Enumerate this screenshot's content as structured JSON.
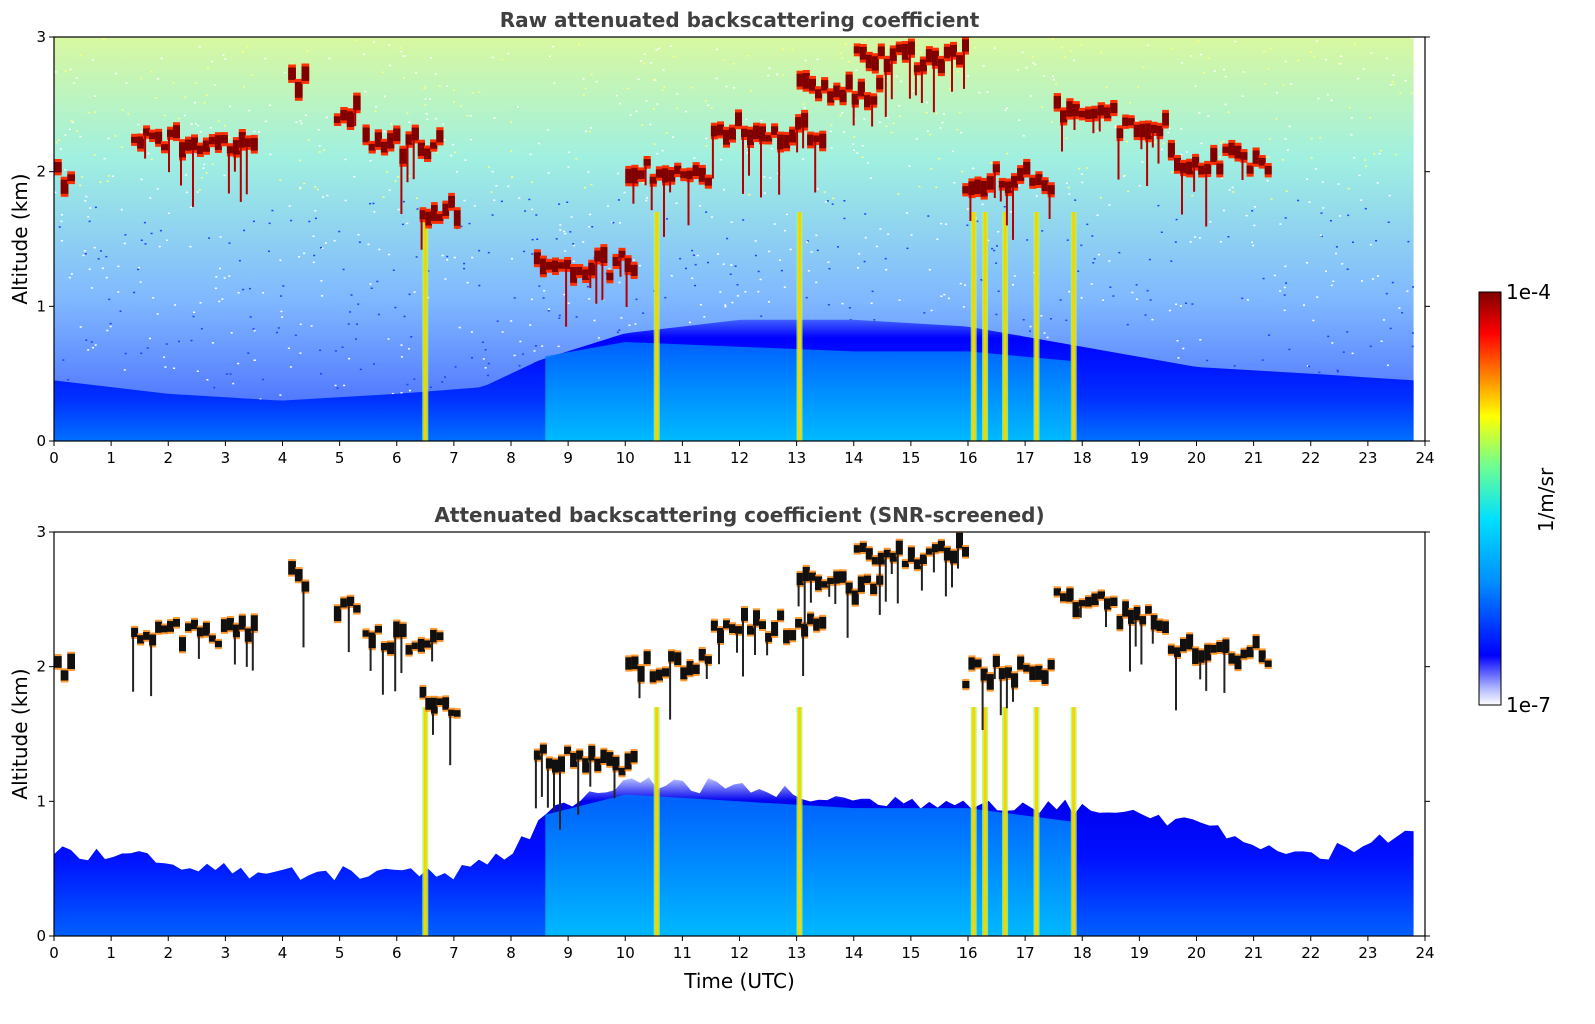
{
  "colors": {
    "colormap": [
      "#ffffff",
      "#b0b8ff",
      "#0000ff",
      "#0090ff",
      "#00e0ff",
      "#70ff90",
      "#ffff00",
      "#ff8000",
      "#ff0000",
      "#800000"
    ],
    "cloud_dark": "#101010",
    "axis": "#000000",
    "title_text": "#404040"
  },
  "chart_data": [
    {
      "type": "heatmap",
      "title": "Raw attenuated backscattering coefficient",
      "xlabel": "",
      "ylabel": "Altitude (km)",
      "xlim": [
        0,
        24
      ],
      "ylim": [
        0,
        3
      ],
      "x_ticks": [
        0,
        1,
        2,
        3,
        4,
        5,
        6,
        7,
        8,
        9,
        10,
        11,
        12,
        13,
        14,
        15,
        16,
        17,
        18,
        19,
        20,
        21,
        22,
        23,
        24
      ],
      "y_ticks": [
        0,
        1,
        2,
        3
      ],
      "data_end_time": 23.8,
      "boundary_layer_top_km": [
        [
          0,
          0.45
        ],
        [
          2,
          0.35
        ],
        [
          4,
          0.3
        ],
        [
          6,
          0.35
        ],
        [
          7.5,
          0.4
        ],
        [
          8.5,
          0.6
        ],
        [
          10,
          0.8
        ],
        [
          12,
          0.9
        ],
        [
          14,
          0.9
        ],
        [
          16,
          0.85
        ],
        [
          18,
          0.7
        ],
        [
          20,
          0.55
        ],
        [
          22,
          0.5
        ],
        [
          23.8,
          0.45
        ]
      ],
      "cloud_layers": [
        {
          "start": 0.0,
          "end": 0.35,
          "altitude_km": 1.95
        },
        {
          "start": 1.35,
          "end": 3.55,
          "altitude_km": 2.25
        },
        {
          "start": 4.1,
          "end": 4.45,
          "altitude_km": 2.65
        },
        {
          "start": 4.9,
          "end": 5.35,
          "altitude_km": 2.45
        },
        {
          "start": 5.4,
          "end": 6.8,
          "altitude_km": 2.2
        },
        {
          "start": 6.4,
          "end": 7.1,
          "altitude_km": 1.72
        },
        {
          "start": 8.4,
          "end": 10.2,
          "altitude_km": 1.3
        },
        {
          "start": 10.0,
          "end": 11.5,
          "altitude_km": 2.0
        },
        {
          "start": 11.5,
          "end": 13.5,
          "altitude_km": 2.3
        },
        {
          "start": 13.0,
          "end": 14.5,
          "altitude_km": 2.6
        },
        {
          "start": 14.0,
          "end": 16.0,
          "altitude_km": 2.85
        },
        {
          "start": 15.9,
          "end": 17.5,
          "altitude_km": 1.95
        },
        {
          "start": 17.5,
          "end": 18.6,
          "altitude_km": 2.5
        },
        {
          "start": 18.6,
          "end": 19.5,
          "altitude_km": 2.35
        },
        {
          "start": 19.5,
          "end": 21.3,
          "altitude_km": 2.1
        }
      ],
      "precipitation_streaks_utc": [
        6.5,
        10.55,
        13.05,
        16.1,
        16.3,
        16.65,
        17.2,
        17.85
      ]
    },
    {
      "type": "heatmap",
      "title": "Attenuated backscattering coefficient (SNR-screened)",
      "xlabel": "Time (UTC)",
      "ylabel": "Altitude (km)",
      "xlim": [
        0,
        24
      ],
      "ylim": [
        0,
        3
      ],
      "x_ticks": [
        0,
        1,
        2,
        3,
        4,
        5,
        6,
        7,
        8,
        9,
        10,
        11,
        12,
        13,
        14,
        15,
        16,
        17,
        18,
        19,
        20,
        21,
        22,
        23,
        24
      ],
      "y_ticks": [
        0,
        1,
        2,
        3
      ],
      "data_end_time": 23.8,
      "boundary_layer_top_km": [
        [
          0,
          0.65
        ],
        [
          2,
          0.55
        ],
        [
          4,
          0.45
        ],
        [
          6,
          0.5
        ],
        [
          7,
          0.45
        ],
        [
          8,
          0.6
        ],
        [
          8.6,
          0.9
        ],
        [
          10,
          1.15
        ],
        [
          12,
          1.1
        ],
        [
          14,
          1.0
        ],
        [
          16,
          1.0
        ],
        [
          18,
          0.95
        ],
        [
          19,
          0.9
        ],
        [
          20,
          0.85
        ],
        [
          21,
          0.7
        ],
        [
          22,
          0.6
        ],
        [
          23.8,
          0.75
        ]
      ],
      "cloud_layers": [
        {
          "start": 0.0,
          "end": 0.35,
          "altitude_km": 1.95
        },
        {
          "start": 1.35,
          "end": 3.55,
          "altitude_km": 2.25
        },
        {
          "start": 4.1,
          "end": 4.45,
          "altitude_km": 2.65
        },
        {
          "start": 4.9,
          "end": 5.35,
          "altitude_km": 2.45
        },
        {
          "start": 5.4,
          "end": 6.8,
          "altitude_km": 2.2
        },
        {
          "start": 6.4,
          "end": 7.1,
          "altitude_km": 1.72
        },
        {
          "start": 8.4,
          "end": 10.2,
          "altitude_km": 1.3
        },
        {
          "start": 10.0,
          "end": 11.5,
          "altitude_km": 2.0
        },
        {
          "start": 11.5,
          "end": 13.5,
          "altitude_km": 2.3
        },
        {
          "start": 13.0,
          "end": 14.5,
          "altitude_km": 2.6
        },
        {
          "start": 14.0,
          "end": 16.0,
          "altitude_km": 2.85
        },
        {
          "start": 15.9,
          "end": 17.5,
          "altitude_km": 1.95
        },
        {
          "start": 17.5,
          "end": 18.6,
          "altitude_km": 2.5
        },
        {
          "start": 18.6,
          "end": 19.5,
          "altitude_km": 2.35
        },
        {
          "start": 19.5,
          "end": 21.3,
          "altitude_km": 2.1
        }
      ],
      "precipitation_streaks_utc": [
        6.5,
        10.55,
        13.05,
        16.1,
        16.3,
        16.65,
        17.2,
        17.85
      ]
    }
  ],
  "colorbar": {
    "label": "1/m/sr",
    "max_label": "1e-4",
    "min_label": "1e-7"
  }
}
